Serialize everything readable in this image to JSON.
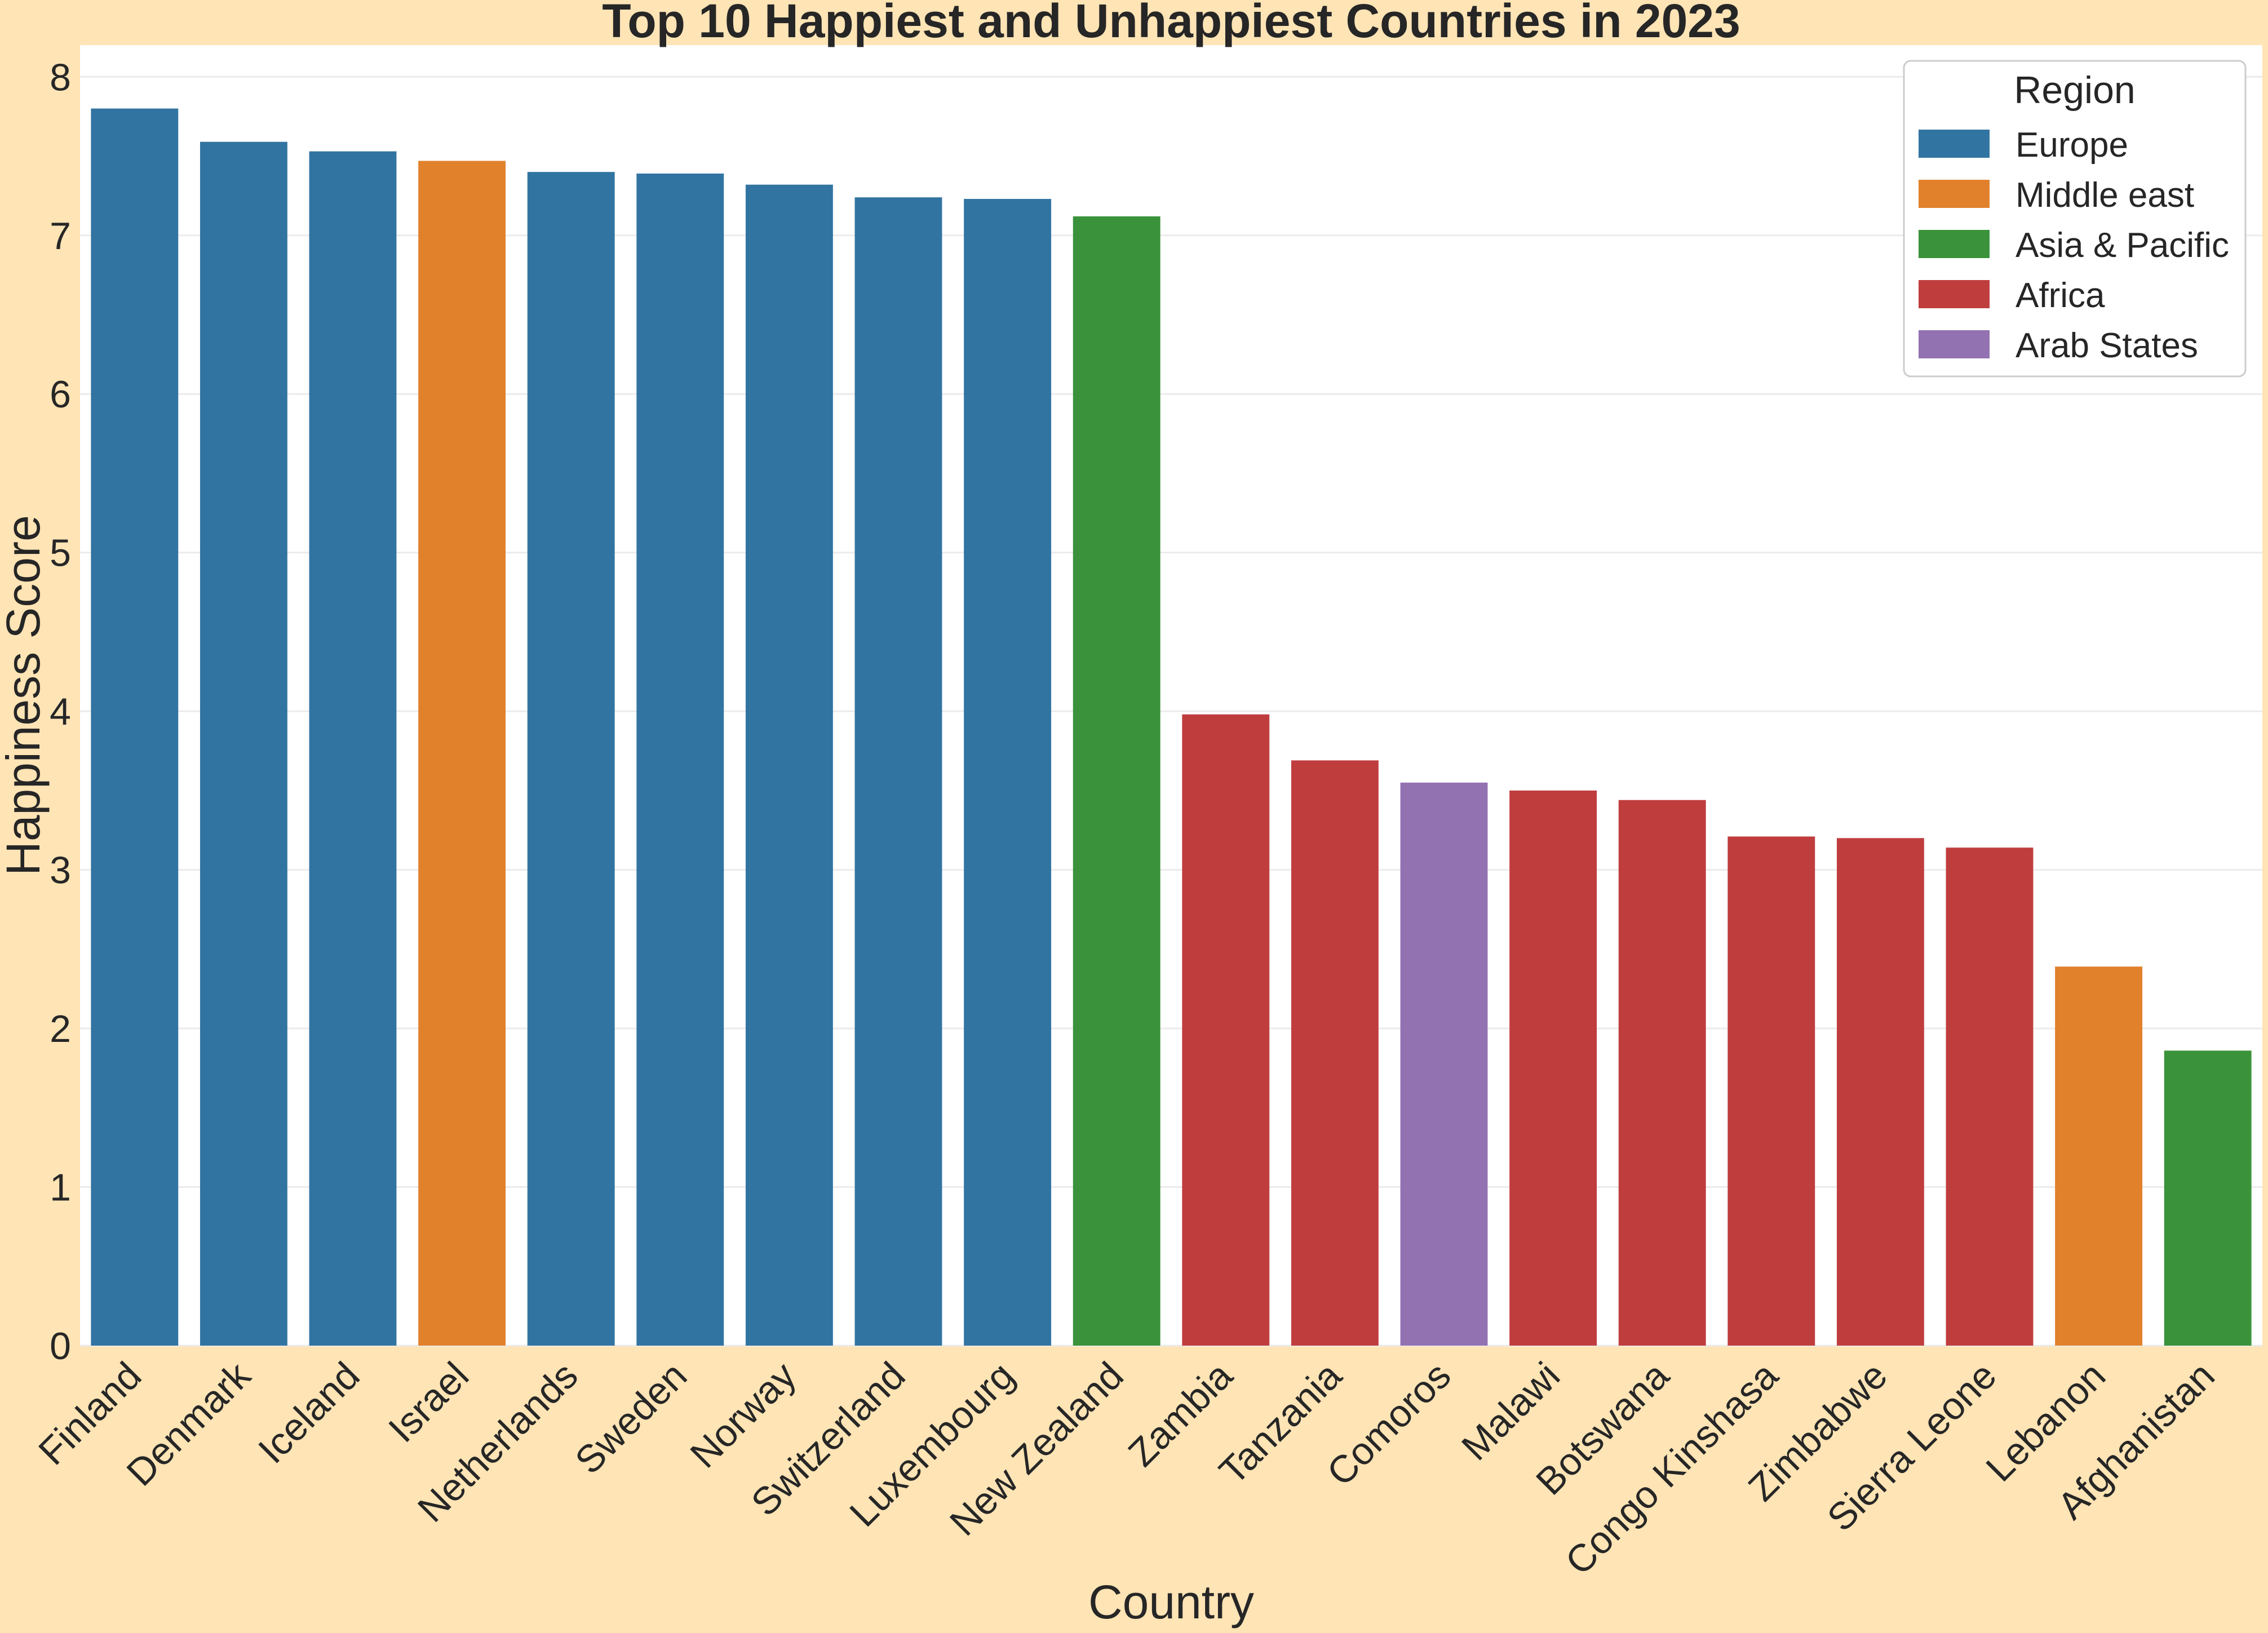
{
  "chart_data": {
    "type": "bar",
    "title": "Top 10 Happiest and Unhappiest Countries in 2023",
    "xlabel": "Country",
    "ylabel": "Happiness Score",
    "ylim": [
      0,
      8.2
    ],
    "yticks": [
      0,
      1,
      2,
      3,
      4,
      5,
      6,
      7,
      8
    ],
    "grid": "y",
    "legend_position": "top-right",
    "categories": [
      "Finland",
      "Denmark",
      "Iceland",
      "Israel",
      "Netherlands",
      "Sweden",
      "Norway",
      "Switzerland",
      "Luxembourg",
      "New Zealand",
      "Zambia",
      "Tanzania",
      "Comoros",
      "Malawi",
      "Botswana",
      "Congo Kinshasa",
      "Zimbabwe",
      "Sierra Leone",
      "Lebanon",
      "Afghanistan"
    ],
    "values": [
      7.8,
      7.59,
      7.53,
      7.47,
      7.4,
      7.39,
      7.32,
      7.24,
      7.23,
      7.12,
      3.98,
      3.69,
      3.55,
      3.5,
      3.44,
      3.21,
      3.2,
      3.14,
      2.39,
      1.86
    ],
    "regions": [
      "Europe",
      "Europe",
      "Europe",
      "Middle east",
      "Europe",
      "Europe",
      "Europe",
      "Europe",
      "Europe",
      "Asia & Pacific",
      "Africa",
      "Africa",
      "Arab States",
      "Africa",
      "Africa",
      "Africa",
      "Africa",
      "Africa",
      "Middle east",
      "Asia & Pacific"
    ],
    "legend": {
      "title": "Region",
      "entries": [
        {
          "name": "Europe",
          "color": "#3274A1"
        },
        {
          "name": "Middle east",
          "color": "#E1812C"
        },
        {
          "name": "Asia & Pacific",
          "color": "#3A923A"
        },
        {
          "name": "Africa",
          "color": "#C03D3E"
        },
        {
          "name": "Arab States",
          "color": "#9372B2"
        }
      ]
    },
    "colors": {
      "background": "#FFE4B5",
      "plot_background": "#FFFFFF",
      "grid": "#EBEBEB",
      "text": "#262626"
    }
  }
}
